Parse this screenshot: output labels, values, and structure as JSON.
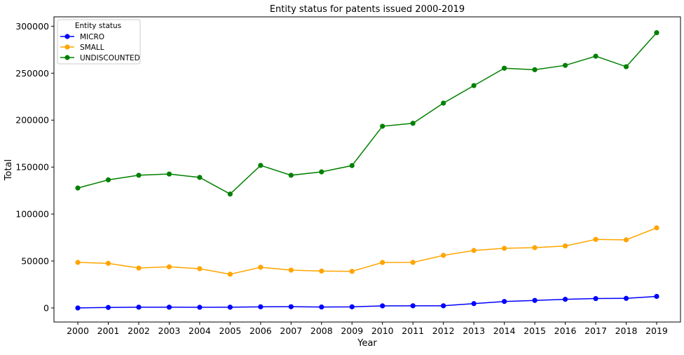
{
  "chart_data": {
    "type": "line",
    "title": "Entity status for patents issued 2000-2019",
    "xlabel": "Year",
    "ylabel": "Total",
    "x": [
      "2000",
      "2001",
      "2002",
      "2003",
      "2004",
      "2005",
      "2006",
      "2007",
      "2008",
      "2009",
      "2010",
      "2011",
      "2012",
      "2013",
      "2014",
      "2015",
      "2016",
      "2017",
      "2018",
      "2019"
    ],
    "ylim": [
      -15000,
      310000
    ],
    "yticks": [
      0,
      50000,
      100000,
      150000,
      200000,
      250000,
      300000
    ],
    "ytick_labels": [
      "0",
      "50000",
      "100000",
      "150000",
      "200000",
      "250000",
      "300000"
    ],
    "grid": false,
    "legend": {
      "title": "Entity status",
      "placement": "top-left"
    },
    "series": [
      {
        "name": "MICRO",
        "color": "#0000ff",
        "values": [
          0,
          500,
          800,
          800,
          700,
          800,
          1200,
          1300,
          1000,
          1200,
          2200,
          2300,
          2300,
          4600,
          6900,
          8000,
          9200,
          10000,
          10200,
          12300
        ]
      },
      {
        "name": "SMALL",
        "color": "#ffa500",
        "values": [
          48500,
          47500,
          42500,
          43800,
          41800,
          35900,
          43300,
          40300,
          39300,
          39000,
          48400,
          48500,
          56000,
          61200,
          63500,
          64200,
          66000,
          73000,
          72500,
          85300
        ]
      },
      {
        "name": "UNDISCOUNTED",
        "color": "#008000",
        "values": [
          127700,
          136400,
          141300,
          142600,
          139000,
          121300,
          151800,
          141300,
          144900,
          151600,
          193500,
          196600,
          218100,
          236800,
          255300,
          253700,
          258300,
          268100,
          256900,
          293100
        ]
      }
    ]
  }
}
